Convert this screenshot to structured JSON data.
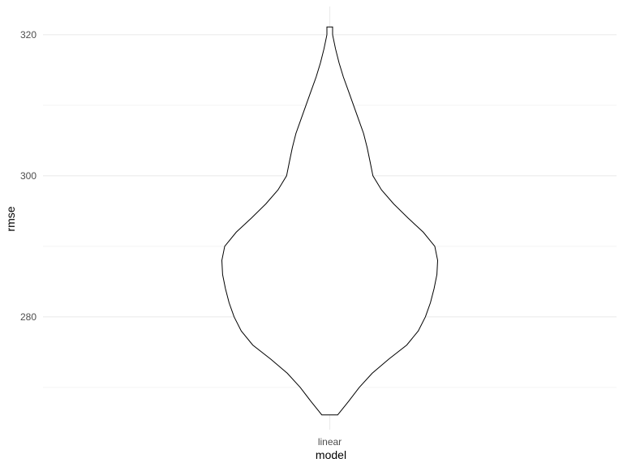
{
  "chart_data": {
    "type": "violin",
    "title": "",
    "xlabel": "model",
    "ylabel": "rmse",
    "categories": [
      "linear"
    ],
    "ylim": [
      264,
      324
    ],
    "y_ticks": [
      280,
      300,
      320
    ],
    "y_minor_ticks": [
      270,
      290,
      310
    ],
    "grid": true,
    "legend": "none",
    "series": [
      {
        "category": "linear",
        "y_min": 266.1,
        "y_max": 321.1,
        "density_profile": [
          {
            "y": 266.1,
            "half_width": 0.11
          },
          {
            "y": 268.0,
            "half_width": 0.26
          },
          {
            "y": 270.0,
            "half_width": 0.41
          },
          {
            "y": 272.0,
            "half_width": 0.59
          },
          {
            "y": 274.0,
            "half_width": 0.82
          },
          {
            "y": 276.0,
            "half_width": 1.07
          },
          {
            "y": 278.0,
            "half_width": 1.23
          },
          {
            "y": 280.0,
            "half_width": 1.33
          },
          {
            "y": 282.0,
            "half_width": 1.4
          },
          {
            "y": 284.0,
            "half_width": 1.45
          },
          {
            "y": 286.0,
            "half_width": 1.49
          },
          {
            "y": 288.0,
            "half_width": 1.5
          },
          {
            "y": 290.0,
            "half_width": 1.46
          },
          {
            "y": 292.0,
            "half_width": 1.3
          },
          {
            "y": 294.0,
            "half_width": 1.09
          },
          {
            "y": 296.0,
            "half_width": 0.89
          },
          {
            "y": 298.0,
            "half_width": 0.72
          },
          {
            "y": 300.0,
            "half_width": 0.6
          },
          {
            "y": 302.0,
            "half_width": 0.56
          },
          {
            "y": 304.0,
            "half_width": 0.52
          },
          {
            "y": 306.0,
            "half_width": 0.47
          },
          {
            "y": 308.0,
            "half_width": 0.4
          },
          {
            "y": 310.0,
            "half_width": 0.33
          },
          {
            "y": 312.0,
            "half_width": 0.26
          },
          {
            "y": 314.0,
            "half_width": 0.19
          },
          {
            "y": 316.0,
            "half_width": 0.13
          },
          {
            "y": 318.0,
            "half_width": 0.08
          },
          {
            "y": 320.0,
            "half_width": 0.04
          },
          {
            "y": 321.1,
            "half_width": 0.04
          }
        ]
      }
    ]
  }
}
